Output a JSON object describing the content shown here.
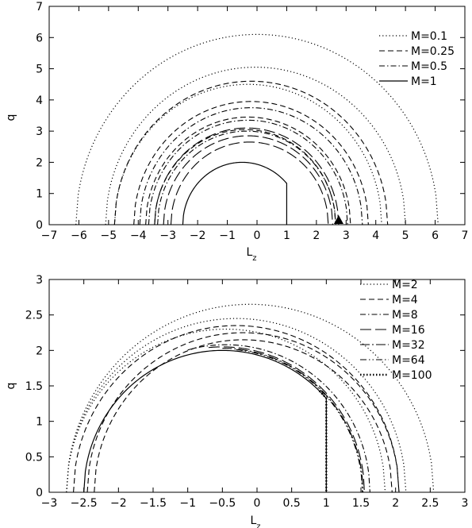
{
  "chart_data": [
    {
      "type": "line",
      "title": "",
      "xlabel": "L",
      "xlabel_subscript": "z",
      "ylabel": "q",
      "xlim": [
        -7,
        7
      ],
      "ylim": [
        0,
        7
      ],
      "xticks": [
        -7,
        -6,
        -5,
        -4,
        -3,
        -2,
        -1,
        0,
        1,
        2,
        3,
        4,
        5,
        6,
        7
      ],
      "yticks": [
        0,
        1,
        2,
        3,
        4,
        5,
        6,
        7
      ],
      "grid": false,
      "legend_position": "top-right",
      "legend": [
        {
          "label": "M=0.1",
          "style": "dotted"
        },
        {
          "label": "M=0.25",
          "style": "dashed"
        },
        {
          "label": "M=0.5",
          "style": "dashdot"
        },
        {
          "label": "M=1",
          "style": "solid"
        }
      ],
      "marker": {
        "shape": "filled-triangle",
        "x": 2.75,
        "y": 0
      },
      "series": [
        {
          "style": "dotted",
          "color": "#000000",
          "r": 6.1,
          "xc": 0.0
        },
        {
          "style": "dotted",
          "color": "#000000",
          "r": 5.05,
          "xc": -0.05
        },
        {
          "style": "dotted",
          "color": "#000000",
          "r": 4.5,
          "xc": -0.3
        },
        {
          "style": "dashed",
          "color": "#000000",
          "r": 4.6,
          "xc": -0.2
        },
        {
          "style": "dashed",
          "color": "#000000",
          "r": 3.95,
          "xc": -0.2
        },
        {
          "style": "dashed",
          "color": "#000000",
          "r": 3.45,
          "xc": -0.3
        },
        {
          "style": "dashed",
          "color": "#000000",
          "r": 3.05,
          "xc": -0.4
        },
        {
          "style": "dashdot",
          "color": "#000000",
          "r": 3.75,
          "xc": -0.2
        },
        {
          "style": "dashdot",
          "color": "#000000",
          "r": 3.35,
          "xc": -0.3
        },
        {
          "style": "dashdot",
          "color": "#000000",
          "r": 3.0,
          "xc": -0.35
        },
        {
          "style": "longdash",
          "color": "#000000",
          "r": 3.1,
          "xc": -0.35
        },
        {
          "style": "longdash",
          "color": "#000000",
          "r": 2.85,
          "xc": -0.3
        },
        {
          "style": "longdash",
          "color": "#000000",
          "r": 2.65,
          "xc": -0.25
        },
        {
          "style": "solid",
          "color": "#000000",
          "r": 2.0,
          "xc": -0.5,
          "cut_at": 1.0
        }
      ]
    },
    {
      "type": "line",
      "title": "",
      "xlabel": "L",
      "xlabel_subscript": "z",
      "ylabel": "q",
      "xlim": [
        -3,
        3
      ],
      "ylim": [
        0,
        3
      ],
      "xticks": [
        -3,
        -2.5,
        -2,
        -1.5,
        -1,
        -0.5,
        0,
        0.5,
        1,
        1.5,
        2,
        2.5,
        3
      ],
      "yticks": [
        0,
        0.5,
        1,
        1.5,
        2,
        2.5,
        3
      ],
      "grid": false,
      "legend_position": "top-right",
      "legend": [
        {
          "label": "M=2",
          "style": "dotted"
        },
        {
          "label": "M=4",
          "style": "dashed"
        },
        {
          "label": "M=8",
          "style": "dashdot"
        },
        {
          "label": "M=16",
          "style": "longdash"
        },
        {
          "label": "M=32",
          "style": "dashdotlong"
        },
        {
          "label": "M=64",
          "style": "dashdotdot"
        },
        {
          "label": "M=100",
          "style": "thickdotted"
        }
      ],
      "series": [
        {
          "style": "dotted",
          "color": "#000000",
          "r": 2.65,
          "xc": -0.1
        },
        {
          "style": "dotted",
          "color": "#000000",
          "r": 2.45,
          "xc": -0.3
        },
        {
          "style": "dotted",
          "color": "#000000",
          "r": 2.3,
          "xc": -0.45
        },
        {
          "style": "dashed",
          "color": "#000000",
          "r": 2.35,
          "xc": -0.3
        },
        {
          "style": "dashed",
          "color": "#000000",
          "r": 2.25,
          "xc": -0.2
        },
        {
          "style": "dashed",
          "color": "#000000",
          "r": 2.15,
          "xc": -0.2
        },
        {
          "style": "dashdot",
          "color": "#000000",
          "r": 2.08,
          "xc": -0.45,
          "xmin": -1.0
        },
        {
          "style": "longdash",
          "color": "#000000",
          "r": 2.05,
          "xc": -0.5,
          "xmin": -0.7
        },
        {
          "style": "dashdotlong",
          "color": "#000000",
          "r": 2.03,
          "xc": -0.5,
          "xmin": -0.5
        },
        {
          "style": "dashdotdot",
          "color": "#000000",
          "r": 2.02,
          "xc": -0.5,
          "xmin": -0.3
        },
        {
          "style": "thickdotted",
          "color": "#000000",
          "r": 2.0,
          "xc": -0.5,
          "xmin": 0.9,
          "cut_at": 1.0
        },
        {
          "style": "solid",
          "color": "#000000",
          "r": 2.0,
          "xc": -0.5,
          "cut_at": 1.0
        }
      ]
    }
  ]
}
